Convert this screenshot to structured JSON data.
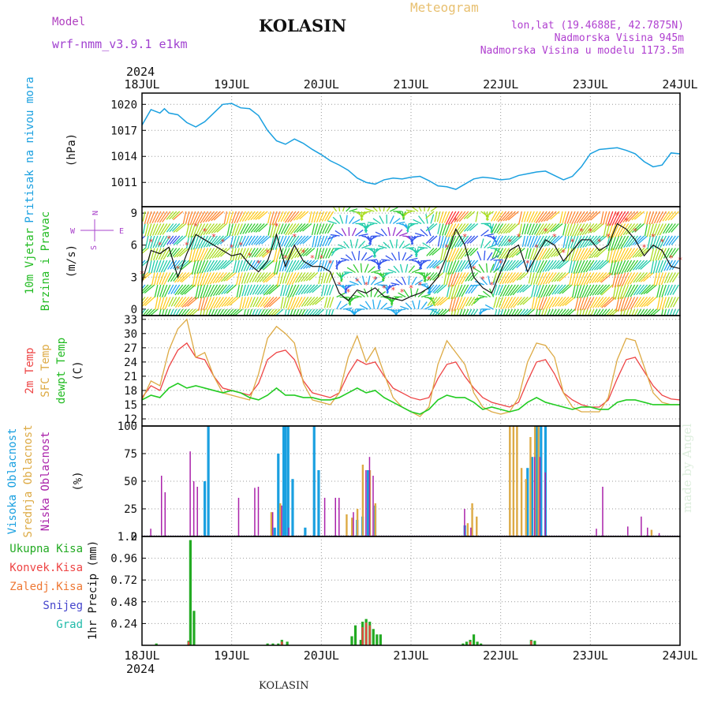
{
  "header": {
    "model_label": "Model",
    "model_name": "wrf-nmm_v3.9.1 e1km",
    "title": "KOLASIN",
    "meteogram_label": "Meteogram",
    "lonlat": "lon,lat (19.4688E, 42.7875N)",
    "altitude": "Nadmorska Visina 945m",
    "model_altitude": "Nadmorska Visina u modelu 1173.5m"
  },
  "footer": {
    "location": "KOLASIN",
    "credit": "made by Angel"
  },
  "colors": {
    "pressure": "#1aa0e0",
    "temp2m": "#ee4444",
    "sfc": "#ddaa44",
    "dew": "#22cc22",
    "high_cloud": "#1aa0e0",
    "mid_cloud": "#ddaa44",
    "low_cloud": "#aa22aa",
    "total_precip": "#22aa22",
    "convective": "#ee4444",
    "freezing": "#ee7733",
    "snow": "#4444cc",
    "hail": "#22bbaa"
  },
  "chart_data": [
    {
      "type": "line",
      "panel": "pressure",
      "ylabel": [
        "Pritisak na nivou mora",
        "(hPa)"
      ],
      "ylim": [
        1008.2,
        1021.3
      ],
      "yticks": [
        1011,
        1014,
        1017,
        1020
      ],
      "x_start_year": "2024",
      "date_ticks": [
        "18JUL",
        "19JUL",
        "20JUL",
        "21JUL",
        "22JUL",
        "23JUL",
        "24JUL"
      ],
      "x_days": [
        0,
        0.1,
        0.2,
        0.25,
        0.3,
        0.4,
        0.5,
        0.6,
        0.7,
        0.8,
        0.9,
        1.0,
        1.1,
        1.2,
        1.3,
        1.4,
        1.5,
        1.6,
        1.7,
        1.8,
        1.9,
        2.0,
        2.1,
        2.2,
        2.3,
        2.4,
        2.5,
        2.6,
        2.7,
        2.8,
        2.9,
        3.0,
        3.1,
        3.2,
        3.3,
        3.4,
        3.5,
        3.6,
        3.7,
        3.8,
        3.9,
        4.0,
        4.1,
        4.2,
        4.3,
        4.4,
        4.5,
        4.6,
        4.7,
        4.8,
        4.9,
        5.0,
        5.1,
        5.2,
        5.3,
        5.4,
        5.5,
        5.6,
        5.7,
        5.8,
        5.9,
        6.0
      ],
      "series": [
        {
          "values": [
            1017.6,
            1019.4,
            1019.0,
            1019.5,
            1019.0,
            1018.8,
            1017.9,
            1017.4,
            1018.0,
            1019.0,
            1020.0,
            1020.1,
            1019.6,
            1019.5,
            1018.7,
            1017.0,
            1015.8,
            1015.4,
            1016.0,
            1015.5,
            1014.8,
            1014.2,
            1013.5,
            1013.0,
            1012.4,
            1011.5,
            1011.0,
            1010.8,
            1011.3,
            1011.5,
            1011.4,
            1011.6,
            1011.7,
            1011.2,
            1010.6,
            1010.5,
            1010.2,
            1010.8,
            1011.4,
            1011.6,
            1011.5,
            1011.3,
            1011.4,
            1011.8,
            1012.0,
            1012.2,
            1012.3,
            1011.8,
            1011.3,
            1011.7,
            1012.8,
            1014.3,
            1014.8,
            1014.9,
            1015.0,
            1014.7,
            1014.3,
            1013.4,
            1012.8,
            1013.0,
            1014.4,
            1014.3
          ]
        }
      ]
    },
    {
      "type": "line",
      "panel": "wind",
      "ylabel": [
        "10m Vjetar",
        "Brzina i Pravac",
        "(m/s)"
      ],
      "compass": {
        "N": "N",
        "S": "S",
        "W": "W",
        "E": "E"
      },
      "ylim": [
        -0.6,
        9.6
      ],
      "yticks": [
        0,
        3,
        6,
        9
      ],
      "x_days": [
        0,
        0.1,
        0.2,
        0.3,
        0.4,
        0.5,
        0.6,
        0.7,
        0.8,
        0.9,
        1.0,
        1.1,
        1.2,
        1.3,
        1.4,
        1.5,
        1.6,
        1.7,
        1.8,
        1.9,
        2.0,
        2.1,
        2.2,
        2.3,
        2.4,
        2.5,
        2.6,
        2.7,
        2.8,
        2.9,
        3.0,
        3.1,
        3.2,
        3.3,
        3.4,
        3.5,
        3.6,
        3.7,
        3.8,
        3.9,
        4.0,
        4.1,
        4.2,
        4.3,
        4.4,
        4.5,
        4.6,
        4.7,
        4.8,
        4.9,
        5.0,
        5.1,
        5.2,
        5.3,
        5.4,
        5.5,
        5.6,
        5.7,
        5.8,
        5.9,
        6.0
      ],
      "series": [
        {
          "name": "10m wind speed",
          "values": [
            2.5,
            5.5,
            5.2,
            5.8,
            3.0,
            5.2,
            7.0,
            6.5,
            6.0,
            5.5,
            5.0,
            5.2,
            4.2,
            3.5,
            4.5,
            7.0,
            4.0,
            6.0,
            4.5,
            4.0,
            4.0,
            3.5,
            1.5,
            0.8,
            1.8,
            1.5,
            2.0,
            1.2,
            1.0,
            0.8,
            1.2,
            1.5,
            2.0,
            3.0,
            5.0,
            7.5,
            6.0,
            3.0,
            2.0,
            1.5,
            3.5,
            5.5,
            6.0,
            3.5,
            5.0,
            6.5,
            6.0,
            4.5,
            5.5,
            6.5,
            6.5,
            5.5,
            6.0,
            8.0,
            7.5,
            6.5,
            5.0,
            6.0,
            5.5,
            4.0,
            3.8
          ]
        }
      ],
      "barb_colors": [
        "#ff3333",
        "#ff8833",
        "#ffcc22",
        "#aadd22",
        "#33cc33",
        "#22ccaa",
        "#22aaee",
        "#3355ee",
        "#9933cc"
      ]
    },
    {
      "type": "line",
      "panel": "temperature",
      "ylabel": [
        "2m Temp",
        "SFC Temp",
        "dewpt Temp",
        "(C)"
      ],
      "ylim": [
        10.5,
        33.8
      ],
      "yticks": [
        12,
        15,
        18,
        21,
        24,
        27,
        30,
        33
      ],
      "x_days": [
        0,
        0.1,
        0.2,
        0.3,
        0.4,
        0.5,
        0.6,
        0.7,
        0.8,
        0.9,
        1.0,
        1.1,
        1.2,
        1.3,
        1.4,
        1.5,
        1.6,
        1.7,
        1.8,
        1.9,
        2.0,
        2.1,
        2.2,
        2.3,
        2.4,
        2.5,
        2.6,
        2.7,
        2.8,
        2.9,
        3.0,
        3.1,
        3.2,
        3.3,
        3.4,
        3.5,
        3.6,
        3.7,
        3.8,
        3.9,
        4.0,
        4.1,
        4.2,
        4.3,
        4.4,
        4.5,
        4.6,
        4.7,
        4.8,
        4.9,
        5.0,
        5.1,
        5.2,
        5.3,
        5.4,
        5.5,
        5.6,
        5.7,
        5.8,
        5.9,
        6.0
      ],
      "series": [
        {
          "name": "2m Temp",
          "values": [
            16.5,
            19.0,
            18.0,
            23.0,
            26.5,
            28.0,
            25.0,
            24.5,
            21.0,
            18.5,
            18.0,
            17.5,
            17.0,
            19.5,
            24.5,
            26.0,
            26.5,
            24.5,
            20.0,
            17.5,
            17.0,
            16.5,
            17.5,
            21.5,
            24.5,
            23.5,
            24.0,
            21.0,
            18.5,
            17.5,
            16.5,
            16.0,
            16.5,
            20.5,
            23.5,
            24.0,
            21.0,
            18.5,
            16.5,
            15.5,
            15.0,
            14.5,
            15.5,
            20.0,
            24.0,
            24.5,
            21.5,
            17.5,
            16.0,
            15.0,
            14.5,
            14.5,
            16.0,
            20.5,
            24.5,
            25.0,
            22.0,
            19.0,
            17.0,
            16.2,
            16.0
          ]
        },
        {
          "name": "SFC Temp",
          "values": [
            16.0,
            20.0,
            19.0,
            26.5,
            31.0,
            33.0,
            25.0,
            26.0,
            21.0,
            17.5,
            17.0,
            16.5,
            16.0,
            21.5,
            29.0,
            31.5,
            30.0,
            28.0,
            19.5,
            16.0,
            15.5,
            15.0,
            17.5,
            25.0,
            29.5,
            24.0,
            27.0,
            21.5,
            16.5,
            14.5,
            13.5,
            12.5,
            14.5,
            23.5,
            28.5,
            26.0,
            23.5,
            17.5,
            14.5,
            13.5,
            13.0,
            13.5,
            16.5,
            24.0,
            28.0,
            27.5,
            25.0,
            17.5,
            14.5,
            13.5,
            13.5,
            13.5,
            16.5,
            24.5,
            29.0,
            28.5,
            23.0,
            17.5,
            15.5,
            15.0,
            15.0
          ]
        },
        {
          "name": "dewpt Temp",
          "values": [
            16.0,
            17.0,
            16.5,
            18.5,
            19.5,
            18.5,
            19.0,
            18.5,
            18.0,
            17.5,
            18.0,
            17.5,
            16.5,
            16.0,
            17.0,
            18.5,
            17.0,
            17.0,
            16.5,
            16.5,
            16.0,
            16.0,
            16.5,
            17.5,
            18.5,
            17.5,
            18.0,
            16.5,
            15.5,
            14.5,
            13.5,
            13.0,
            14.0,
            16.0,
            17.0,
            16.5,
            16.5,
            15.5,
            14.0,
            14.5,
            14.0,
            13.5,
            14.0,
            15.5,
            16.5,
            15.5,
            15.0,
            14.5,
            14.0,
            14.5,
            14.5,
            14.0,
            14.0,
            15.5,
            16.0,
            16.0,
            15.5,
            15.0,
            15.0,
            15.0,
            15.0
          ]
        }
      ]
    },
    {
      "type": "bar",
      "panel": "cloud",
      "ylabel": [
        "Visoka Oblacnost",
        "Srednja Oblacnost",
        "Niska Oblacnost",
        "(%)"
      ],
      "ylim": [
        0,
        100
      ],
      "yticks": [
        0,
        25,
        50,
        75,
        100
      ],
      "series": [
        {
          "name": "Visoka Oblacnost",
          "points": [
            [
              0.7,
              50
            ],
            [
              0.74,
              100
            ],
            [
              1.48,
              8
            ],
            [
              1.52,
              75
            ],
            [
              1.58,
              100
            ],
            [
              1.6,
              100
            ],
            [
              1.63,
              100
            ],
            [
              1.68,
              52
            ],
            [
              1.82,
              8
            ],
            [
              1.92,
              100
            ],
            [
              1.97,
              60
            ],
            [
              2.4,
              15
            ],
            [
              2.46,
              18
            ],
            [
              2.52,
              60
            ],
            [
              2.6,
              28
            ],
            [
              3.6,
              10
            ],
            [
              4.3,
              62
            ],
            [
              4.35,
              72
            ],
            [
              4.4,
              100
            ],
            [
              4.45,
              100
            ],
            [
              4.5,
              100
            ]
          ]
        },
        {
          "name": "Srednja Oblacnost",
          "points": [
            [
              1.46,
              22
            ],
            [
              1.56,
              30
            ],
            [
              2.3,
              20
            ],
            [
              2.36,
              17
            ],
            [
              2.42,
              25
            ],
            [
              2.48,
              65
            ],
            [
              2.56,
              60
            ],
            [
              2.62,
              30
            ],
            [
              3.65,
              12
            ],
            [
              3.7,
              30
            ],
            [
              3.75,
              18
            ],
            [
              4.12,
              100
            ],
            [
              4.16,
              100
            ],
            [
              4.2,
              100
            ],
            [
              4.25,
              62
            ],
            [
              4.3,
              52
            ],
            [
              4.35,
              90
            ],
            [
              4.4,
              100
            ],
            [
              4.44,
              100
            ],
            [
              5.7,
              6
            ]
          ]
        },
        {
          "name": "Niska Oblacnost",
          "points": [
            [
              0.08,
              7
            ],
            [
              0.2,
              55
            ],
            [
              0.24,
              40
            ],
            [
              0.52,
              77
            ],
            [
              0.56,
              50
            ],
            [
              0.6,
              45
            ],
            [
              1.06,
              35
            ],
            [
              1.24,
              44
            ],
            [
              1.28,
              45
            ],
            [
              1.44,
              22
            ],
            [
              1.54,
              28
            ],
            [
              1.62,
              8
            ],
            [
              2.02,
              35
            ],
            [
              2.14,
              35
            ],
            [
              2.18,
              35
            ],
            [
              2.34,
              22
            ],
            [
              2.48,
              60
            ],
            [
              2.52,
              72
            ],
            [
              2.56,
              55
            ],
            [
              3.58,
              25
            ],
            [
              3.65,
              8
            ],
            [
              4.36,
              72
            ],
            [
              4.42,
              72
            ],
            [
              4.48,
              58
            ],
            [
              5.05,
              7
            ],
            [
              5.12,
              45
            ],
            [
              5.4,
              9
            ],
            [
              5.62,
              8
            ],
            [
              5.55,
              18
            ],
            [
              5.75,
              3
            ]
          ]
        }
      ]
    },
    {
      "type": "bar",
      "panel": "precipitation",
      "ylabel": [
        "1hr Precip (mm)"
      ],
      "ylim": [
        0,
        1.2
      ],
      "yticks": [
        0.24,
        0.48,
        0.72,
        0.96,
        1.2
      ],
      "x_end_year": "2024",
      "legend": [
        "Ukupna Kisa",
        "Konvek.Kisa",
        "Zaledj.Kisa",
        "Snijeg",
        "Grad"
      ],
      "series": [
        {
          "name": "Ukupna Kisa",
          "points": [
            [
              0.16,
              0.02
            ],
            [
              0.52,
              0.05
            ],
            [
              0.54,
              1.16
            ],
            [
              0.58,
              0.38
            ],
            [
              1.4,
              0.02
            ],
            [
              1.46,
              0.02
            ],
            [
              1.52,
              0.02
            ],
            [
              1.56,
              0.06
            ],
            [
              1.62,
              0.04
            ],
            [
              2.34,
              0.1
            ],
            [
              2.38,
              0.22
            ],
            [
              2.44,
              0.06
            ],
            [
              2.46,
              0.26
            ],
            [
              2.5,
              0.29
            ],
            [
              2.54,
              0.26
            ],
            [
              2.58,
              0.18
            ],
            [
              2.62,
              0.12
            ],
            [
              2.66,
              0.12
            ],
            [
              3.58,
              0.02
            ],
            [
              3.62,
              0.04
            ],
            [
              3.66,
              0.06
            ],
            [
              3.7,
              0.12
            ],
            [
              3.74,
              0.04
            ],
            [
              3.78,
              0.02
            ],
            [
              4.34,
              0.06
            ],
            [
              4.38,
              0.05
            ]
          ]
        },
        {
          "name": "Konvek.Kisa",
          "points": [
            [
              0.52,
              0.04
            ],
            [
              1.56,
              0.04
            ],
            [
              2.46,
              0.2
            ],
            [
              2.5,
              0.25
            ],
            [
              2.54,
              0.22
            ],
            [
              3.66,
              0.04
            ],
            [
              4.34,
              0.05
            ]
          ]
        }
      ]
    }
  ]
}
